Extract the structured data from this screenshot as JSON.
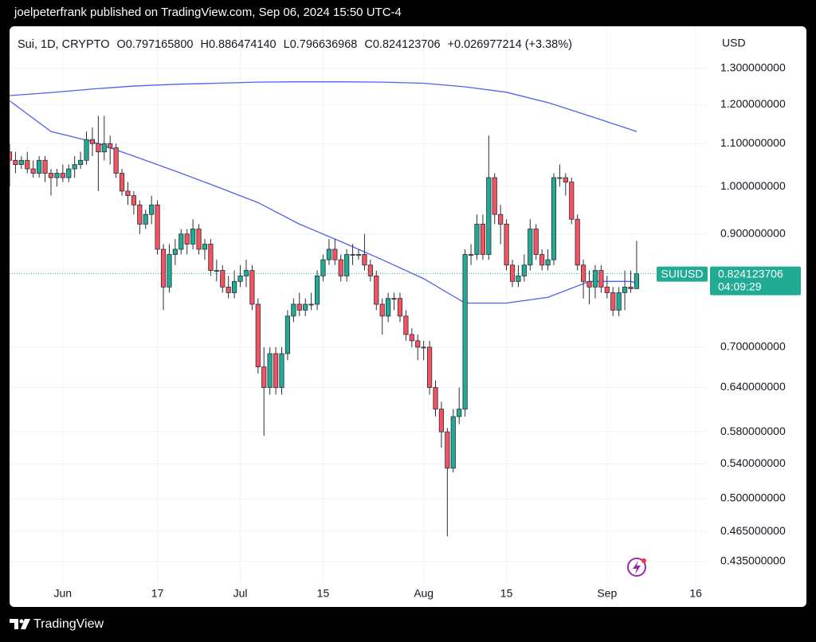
{
  "page": {
    "publisher_line": "joelpeterfrank published on TradingView.com, Sep 06, 2024 15:50 UTC-4",
    "brand": "TradingView"
  },
  "chart_data": {
    "type": "candlestick",
    "symbol": "Sui, 1D, CRYPTO",
    "ohlc_legend": [
      {
        "key": "O",
        "value": "0.797165800"
      },
      {
        "key": "H",
        "value": "0.886474140"
      },
      {
        "key": "L",
        "value": "0.796636968"
      },
      {
        "key": "C",
        "value": "0.824123706"
      }
    ],
    "change": "+0.026977214 (+3.38%)",
    "currency": "USD",
    "price_tag": {
      "symbol": "SUIUSD",
      "countdown": "04:09:29"
    },
    "up_color": "#22ab94",
    "down_color": "#f7525f",
    "wick_color": "#2a2e39",
    "x": [
      "2024-05-23",
      "2024-05-24",
      "2024-05-25",
      "2024-05-26",
      "2024-05-27",
      "2024-05-28",
      "2024-05-29",
      "2024-05-30",
      "2024-05-31",
      "2024-06-01",
      "2024-06-02",
      "2024-06-03",
      "2024-06-04",
      "2024-06-05",
      "2024-06-06",
      "2024-06-07",
      "2024-06-08",
      "2024-06-09",
      "2024-06-10",
      "2024-06-11",
      "2024-06-12",
      "2024-06-13",
      "2024-06-14",
      "2024-06-15",
      "2024-06-16",
      "2024-06-17",
      "2024-06-18",
      "2024-06-19",
      "2024-06-20",
      "2024-06-21",
      "2024-06-22",
      "2024-06-23",
      "2024-06-24",
      "2024-06-25",
      "2024-06-26",
      "2024-06-27",
      "2024-06-28",
      "2024-06-29",
      "2024-06-30",
      "2024-07-01",
      "2024-07-02",
      "2024-07-03",
      "2024-07-04",
      "2024-07-05",
      "2024-07-06",
      "2024-07-07",
      "2024-07-08",
      "2024-07-09",
      "2024-07-10",
      "2024-07-11",
      "2024-07-12",
      "2024-07-13",
      "2024-07-14",
      "2024-07-15",
      "2024-07-16",
      "2024-07-17",
      "2024-07-18",
      "2024-07-19",
      "2024-07-20",
      "2024-07-21",
      "2024-07-22",
      "2024-07-23",
      "2024-07-24",
      "2024-07-25",
      "2024-07-26",
      "2024-07-27",
      "2024-07-28",
      "2024-07-29",
      "2024-07-30",
      "2024-07-31",
      "2024-08-01",
      "2024-08-02",
      "2024-08-03",
      "2024-08-04",
      "2024-08-05",
      "2024-08-06",
      "2024-08-07",
      "2024-08-08",
      "2024-08-09",
      "2024-08-10",
      "2024-08-11",
      "2024-08-12",
      "2024-08-13",
      "2024-08-14",
      "2024-08-15",
      "2024-08-16",
      "2024-08-17",
      "2024-08-18",
      "2024-08-19",
      "2024-08-20",
      "2024-08-21",
      "2024-08-22",
      "2024-08-23",
      "2024-08-24",
      "2024-08-25",
      "2024-08-26",
      "2024-08-27",
      "2024-08-28",
      "2024-08-29",
      "2024-08-30",
      "2024-08-31",
      "2024-09-01",
      "2024-09-02",
      "2024-09-03",
      "2024-09-04",
      "2024-09-05",
      "2024-09-06"
    ],
    "open": [
      1.08,
      1.06,
      1.05,
      1.06,
      1.04,
      1.03,
      1.06,
      1.03,
      1.02,
      1.03,
      1.02,
      1.04,
      1.05,
      1.06,
      1.11,
      1.1,
      1.08,
      1.1,
      1.09,
      1.03,
      0.99,
      0.98,
      0.96,
      0.92,
      0.94,
      0.96,
      0.87,
      0.8,
      0.86,
      0.87,
      0.9,
      0.88,
      0.91,
      0.87,
      0.88,
      0.83,
      0.83,
      0.8,
      0.79,
      0.81,
      0.82,
      0.83,
      0.77,
      0.67,
      0.64,
      0.69,
      0.64,
      0.69,
      0.75,
      0.77,
      0.76,
      0.77,
      0.77,
      0.82,
      0.85,
      0.87,
      0.85,
      0.82,
      0.86,
      0.86,
      0.86,
      0.84,
      0.82,
      0.77,
      0.75,
      0.78,
      0.78,
      0.75,
      0.72,
      0.71,
      0.7,
      0.7,
      0.64,
      0.61,
      0.58,
      0.535,
      0.6,
      0.61,
      0.86,
      0.86,
      0.92,
      0.86,
      1.02,
      0.94,
      0.92,
      0.84,
      0.81,
      0.82,
      0.84,
      0.91,
      0.86,
      0.84,
      0.85,
      1.02,
      1.02,
      1.01,
      0.93,
      0.84,
      0.81,
      0.8,
      0.83,
      0.8,
      0.79,
      0.76,
      0.79,
      0.8,
      0.7971658
    ],
    "high": [
      1.1,
      1.08,
      1.07,
      1.08,
      1.06,
      1.07,
      1.07,
      1.04,
      1.04,
      1.05,
      1.05,
      1.07,
      1.08,
      1.13,
      1.14,
      1.17,
      1.17,
      1.12,
      1.1,
      1.04,
      1.01,
      0.99,
      0.97,
      0.95,
      0.98,
      0.97,
      0.88,
      0.88,
      0.89,
      0.91,
      0.91,
      0.93,
      0.92,
      0.89,
      0.89,
      0.85,
      0.84,
      0.82,
      0.83,
      0.84,
      0.85,
      0.84,
      0.78,
      0.7,
      0.7,
      0.7,
      0.7,
      0.76,
      0.78,
      0.79,
      0.78,
      0.79,
      0.83,
      0.86,
      0.89,
      0.89,
      0.86,
      0.87,
      0.88,
      0.87,
      0.9,
      0.85,
      0.83,
      0.78,
      0.79,
      0.79,
      0.79,
      0.76,
      0.73,
      0.72,
      0.71,
      0.71,
      0.65,
      0.62,
      0.585,
      0.61,
      0.64,
      0.87,
      0.88,
      0.94,
      0.94,
      1.12,
      1.03,
      0.96,
      0.93,
      0.85,
      0.84,
      0.86,
      0.93,
      0.92,
      0.87,
      0.87,
      1.03,
      1.05,
      1.03,
      1.02,
      0.94,
      0.85,
      0.83,
      0.84,
      0.84,
      0.82,
      0.8,
      0.8,
      0.83,
      0.83,
      0.88647414
    ],
    "low": [
      1.0,
      1.03,
      1.04,
      1.03,
      1.02,
      1.02,
      1.01,
      0.98,
      1.0,
      1.01,
      1.01,
      1.02,
      1.04,
      1.05,
      1.07,
      0.99,
      1.06,
      1.05,
      1.02,
      0.98,
      0.96,
      0.94,
      0.9,
      0.91,
      0.92,
      0.86,
      0.76,
      0.79,
      0.84,
      0.86,
      0.86,
      0.87,
      0.86,
      0.85,
      0.82,
      0.81,
      0.79,
      0.78,
      0.78,
      0.8,
      0.8,
      0.76,
      0.66,
      0.575,
      0.63,
      0.63,
      0.63,
      0.68,
      0.74,
      0.75,
      0.75,
      0.76,
      0.76,
      0.81,
      0.84,
      0.84,
      0.81,
      0.81,
      0.84,
      0.85,
      0.83,
      0.81,
      0.76,
      0.72,
      0.74,
      0.76,
      0.74,
      0.71,
      0.7,
      0.68,
      0.68,
      0.63,
      0.6,
      0.56,
      0.46,
      0.53,
      0.59,
      0.6,
      0.84,
      0.85,
      0.85,
      0.85,
      0.92,
      0.88,
      0.83,
      0.8,
      0.8,
      0.81,
      0.83,
      0.85,
      0.83,
      0.83,
      0.84,
      1.0,
      0.98,
      0.92,
      0.83,
      0.78,
      0.77,
      0.78,
      0.79,
      0.78,
      0.75,
      0.75,
      0.76,
      0.79,
      0.796636968
    ],
    "close": [
      1.06,
      1.05,
      1.06,
      1.04,
      1.03,
      1.06,
      1.03,
      1.02,
      1.03,
      1.02,
      1.04,
      1.05,
      1.06,
      1.11,
      1.1,
      1.08,
      1.1,
      1.09,
      1.03,
      0.99,
      0.98,
      0.96,
      0.92,
      0.94,
      0.96,
      0.87,
      0.8,
      0.86,
      0.87,
      0.9,
      0.88,
      0.91,
      0.87,
      0.88,
      0.83,
      0.83,
      0.8,
      0.79,
      0.81,
      0.82,
      0.83,
      0.77,
      0.67,
      0.64,
      0.69,
      0.64,
      0.69,
      0.75,
      0.77,
      0.76,
      0.77,
      0.77,
      0.82,
      0.85,
      0.87,
      0.85,
      0.82,
      0.86,
      0.86,
      0.86,
      0.84,
      0.82,
      0.77,
      0.75,
      0.78,
      0.78,
      0.75,
      0.72,
      0.71,
      0.7,
      0.7,
      0.64,
      0.61,
      0.58,
      0.535,
      0.6,
      0.61,
      0.86,
      0.86,
      0.92,
      0.86,
      1.02,
      0.94,
      0.92,
      0.84,
      0.81,
      0.82,
      0.84,
      0.91,
      0.86,
      0.84,
      0.85,
      1.02,
      1.02,
      1.01,
      0.93,
      0.84,
      0.81,
      0.8,
      0.83,
      0.8,
      0.79,
      0.76,
      0.79,
      0.8,
      0.797,
      0.824123706
    ],
    "lines": [
      {
        "color": "#5060f0",
        "x": [
          "2024-05-23",
          "2024-05-30",
          "2024-06-06",
          "2024-06-13",
          "2024-06-20",
          "2024-06-27",
          "2024-07-04",
          "2024-07-11",
          "2024-07-18",
          "2024-07-25",
          "2024-08-01",
          "2024-08-08",
          "2024-08-15",
          "2024-08-22",
          "2024-08-29",
          "2024-09-05",
          "2024-09-06"
        ],
        "values": [
          1.224,
          1.232,
          1.242,
          1.25,
          1.255,
          1.258,
          1.261,
          1.262,
          1.262,
          1.261,
          1.258,
          1.248,
          1.233,
          1.205,
          1.17,
          1.135,
          1.13
        ]
      },
      {
        "color": "#5060f0",
        "x": [
          "2024-05-23",
          "2024-05-30",
          "2024-06-06",
          "2024-06-13",
          "2024-06-20",
          "2024-06-27",
          "2024-07-04",
          "2024-07-11",
          "2024-07-18",
          "2024-07-25",
          "2024-08-01",
          "2024-08-08",
          "2024-08-15",
          "2024-08-22",
          "2024-08-29",
          "2024-09-05",
          "2024-09-06"
        ],
        "values": [
          1.21,
          1.13,
          1.105,
          1.07,
          1.035,
          1.0,
          0.965,
          0.92,
          0.885,
          0.85,
          0.815,
          0.772,
          0.772,
          0.782,
          0.81,
          0.81,
          0.807
        ]
      }
    ],
    "xlim": [
      "2024-05-23",
      "2024-09-18"
    ],
    "xticks": [
      {
        "value": "2024-06-01",
        "label": "Jun"
      },
      {
        "value": "2024-06-17",
        "label": "17"
      },
      {
        "value": "2024-07-01",
        "label": "Jul"
      },
      {
        "value": "2024-07-15",
        "label": "15"
      },
      {
        "value": "2024-08-01",
        "label": "Aug"
      },
      {
        "value": "2024-08-15",
        "label": "15"
      },
      {
        "value": "2024-09-01",
        "label": "Sep"
      },
      {
        "value": "2024-09-16",
        "label": "16"
      }
    ],
    "ylim": [
      0.416,
      1.41
    ],
    "log_scale": true,
    "yticks": [
      {
        "value": 0.435,
        "label": "0.435000000"
      },
      {
        "value": 0.465,
        "label": "0.465000000"
      },
      {
        "value": 0.5,
        "label": "0.500000000"
      },
      {
        "value": 0.54,
        "label": "0.540000000"
      },
      {
        "value": 0.58,
        "label": "0.580000000"
      },
      {
        "value": 0.64,
        "label": "0.640000000"
      },
      {
        "value": 0.7,
        "label": "0.700000000"
      },
      {
        "value": 0.9,
        "label": "0.900000000"
      },
      {
        "value": 1.0,
        "label": "1.000000000"
      },
      {
        "value": 1.1,
        "label": "1.100000000"
      },
      {
        "value": 1.2,
        "label": "1.200000000"
      },
      {
        "value": 1.3,
        "label": "1.300000000"
      }
    ],
    "grid": true
  }
}
